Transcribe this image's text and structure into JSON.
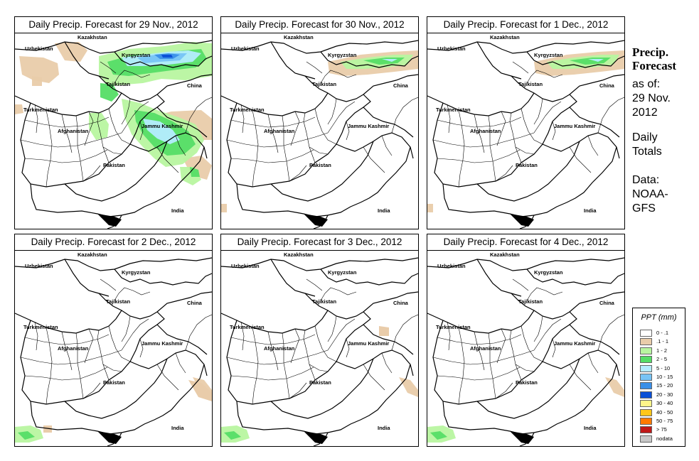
{
  "panels": [
    {
      "title": "Daily Precip. Forecast for  29 Nov., 2012",
      "intensity": "high"
    },
    {
      "title": "Daily Precip. Forecast for  30 Nov., 2012",
      "intensity": "low"
    },
    {
      "title": "Daily Precip. Forecast for  1 Dec., 2012",
      "intensity": "low"
    },
    {
      "title": "Daily Precip. Forecast for  2 Dec., 2012",
      "intensity": "minimal"
    },
    {
      "title": "Daily Precip. Forecast for  3 Dec., 2012",
      "intensity": "minimal"
    },
    {
      "title": "Daily Precip. Forecast for  4 Dec., 2012",
      "intensity": "minimal"
    }
  ],
  "map_labels": {
    "kazakhstan": "Kazakhstan",
    "uzbekistan": "Uzbekistan",
    "kyrgyzstan": "Kyrgyzstan",
    "tajikistan": "Tajikistan",
    "china": "China",
    "turkmenistan": "Turkmenistan",
    "afghanistan": "Afghanistan",
    "jammu_kashmir": "Jammu Kashmir",
    "pakistan": "Pakistan",
    "india": "India"
  },
  "sidebar": {
    "title_line1": "Precip.",
    "title_line2": "Forecast",
    "asof_line1": "as of:",
    "asof_line2": "29 Nov.",
    "asof_line3": "2012",
    "daily_line1": "Daily",
    "daily_line2": "Totals",
    "data_line1": "Data:",
    "data_line2": "NOAA-",
    "data_line3": "GFS"
  },
  "legend": {
    "title": "PPT (mm)",
    "items": [
      {
        "label": "0 - .1",
        "color": "#ffffff"
      },
      {
        "label": ".1 - 1",
        "color": "#e9ccaa"
      },
      {
        "label": "1 - 2",
        "color": "#b8f5a0"
      },
      {
        "label": "2 - 5",
        "color": "#55dd66"
      },
      {
        "label": "5 - 10",
        "color": "#b5ecff"
      },
      {
        "label": "10 - 15",
        "color": "#77c4f5"
      },
      {
        "label": "15 - 20",
        "color": "#3a8fe8"
      },
      {
        "label": "20 - 30",
        "color": "#0a4fd6"
      },
      {
        "label": "30 - 40",
        "color": "#fff58a"
      },
      {
        "label": "40 - 50",
        "color": "#ffc61a"
      },
      {
        "label": "50 - 75",
        "color": "#ff7a00"
      },
      {
        "label": "> 75",
        "color": "#c01818"
      },
      {
        "label": "nodata",
        "color": "#c8c8c8"
      }
    ]
  }
}
